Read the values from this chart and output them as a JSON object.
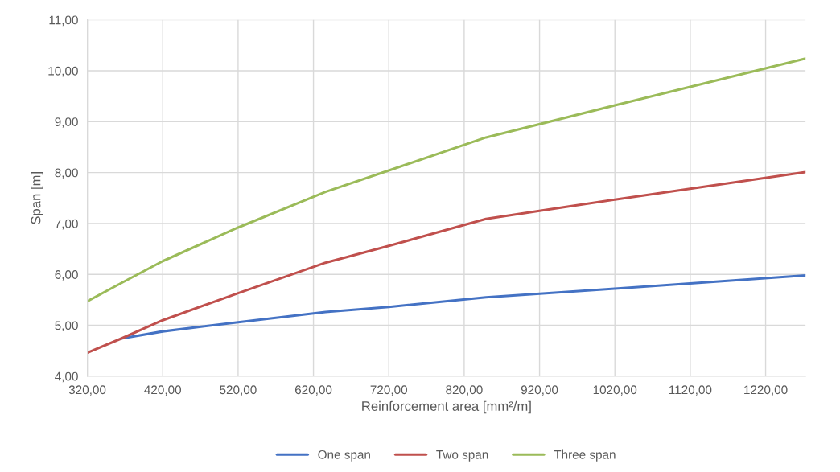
{
  "chart_data": {
    "type": "line",
    "xlabel": "Reinforcement area [mm²/m]",
    "ylabel": "Span [m]",
    "x": [
      320,
      365,
      420,
      520,
      636,
      720,
      849,
      1020,
      1273
    ],
    "series": [
      {
        "name": "One span",
        "color": "#4472c4",
        "x": [
          365,
          420,
          520,
          636,
          720,
          849,
          1020,
          1273
        ],
        "values": [
          4.74,
          4.88,
          5.06,
          5.26,
          5.36,
          5.55,
          5.72,
          5.98
        ]
      },
      {
        "name": "Two span",
        "color": "#c0504d",
        "values": [
          4.46,
          4.74,
          5.1,
          5.63,
          6.23,
          6.56,
          7.09,
          7.47,
          8.01
        ]
      },
      {
        "name": "Three span",
        "color": "#9bbb59",
        "values": [
          5.47,
          5.83,
          6.26,
          6.92,
          7.62,
          8.04,
          8.69,
          9.32,
          10.24
        ]
      }
    ],
    "xlim": [
      320,
      1273
    ],
    "ylim": [
      4,
      11
    ],
    "xticks": [
      {
        "value": 320,
        "label": "320,00"
      },
      {
        "value": 420,
        "label": "420,00"
      },
      {
        "value": 520,
        "label": "520,00"
      },
      {
        "value": 620,
        "label": "620,00"
      },
      {
        "value": 720,
        "label": "720,00"
      },
      {
        "value": 820,
        "label": "820,00"
      },
      {
        "value": 920,
        "label": "920,00"
      },
      {
        "value": 1020,
        "label": "1020,00"
      },
      {
        "value": 1120,
        "label": "1120,00"
      },
      {
        "value": 1220,
        "label": "1220,00"
      }
    ],
    "yticks": [
      {
        "value": 4,
        "label": "4,00"
      },
      {
        "value": 5,
        "label": "5,00"
      },
      {
        "value": 6,
        "label": "6,00"
      },
      {
        "value": 7,
        "label": "7,00"
      },
      {
        "value": 8,
        "label": "8,00"
      },
      {
        "value": 9,
        "label": "9,00"
      },
      {
        "value": 10,
        "label": "10,00"
      },
      {
        "value": 11,
        "label": "11,00"
      }
    ],
    "grid": true,
    "legend": "bottom",
    "marker": "none",
    "line_style": "solid"
  }
}
